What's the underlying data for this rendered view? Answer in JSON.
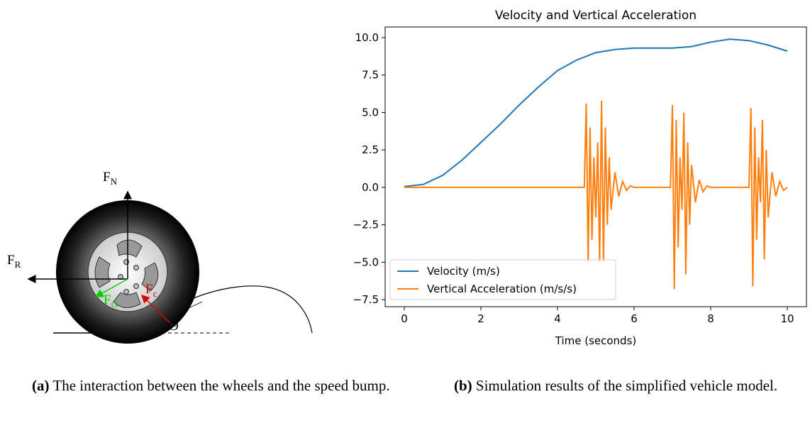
{
  "figure_a": {
    "labels": {
      "normal": {
        "symbol": "F",
        "subscript": "N"
      },
      "rolling": {
        "symbol": "F",
        "subscript": "R"
      },
      "gravity": {
        "symbol": "F",
        "subscript": "G"
      },
      "contact": {
        "symbol": "F",
        "subscript": "c"
      },
      "angle": "Θ"
    },
    "caption": {
      "label": "(a)",
      "text": "The interaction between the wheels and the speed bump."
    }
  },
  "figure_b_caption": {
    "label": "(b)",
    "text": "Simulation results of the simplified vehicle model."
  },
  "chart_data": {
    "type": "line",
    "title": "Velocity and Vertical Acceleration",
    "x_label": "Time (seconds)",
    "xlim": [
      -0.5,
      10.5
    ],
    "ylim": [
      -7.97,
      10.71
    ],
    "xticks": [
      0,
      2,
      4,
      6,
      8,
      10
    ],
    "yticks": [
      {
        "value": -7.5,
        "label": "−7.5"
      },
      {
        "value": -5,
        "label": "−5.0"
      },
      {
        "value": -2.5,
        "label": "−2.5"
      },
      {
        "value": 0,
        "label": "0.0"
      },
      {
        "value": 2.5,
        "label": "2.5"
      },
      {
        "value": 5,
        "label": "5.0"
      },
      {
        "value": 7.5,
        "label": "7.5"
      },
      {
        "value": 10,
        "label": "10.0"
      }
    ],
    "legend": "lower left",
    "series": [
      {
        "name": "Velocity (m/s)",
        "color": "#1f77b4",
        "x": [
          0,
          0.5,
          1,
          1.5,
          2,
          2.5,
          3,
          3.5,
          4,
          4.5,
          5,
          5.5,
          6,
          6.5,
          7,
          7.5,
          8,
          8.5,
          9,
          9.5,
          10
        ],
        "values": [
          0.05,
          0.2,
          0.8,
          1.8,
          3.0,
          4.2,
          5.5,
          6.7,
          7.8,
          8.5,
          9.0,
          9.2,
          9.3,
          9.3,
          9.3,
          9.4,
          9.7,
          9.9,
          9.8,
          9.5,
          9.1
        ]
      },
      {
        "name": "Vertical Acceleration (m/s/s)",
        "color": "#ff7f0e",
        "x": [
          0,
          4.7,
          4.75,
          4.8,
          4.85,
          4.9,
          4.95,
          5.0,
          5.05,
          5.1,
          5.15,
          5.2,
          5.25,
          5.3,
          5.35,
          5.4,
          5.5,
          5.6,
          5.7,
          5.8,
          5.9,
          6.0,
          6.95,
          7.0,
          7.05,
          7.1,
          7.15,
          7.2,
          7.25,
          7.3,
          7.35,
          7.4,
          7.45,
          7.5,
          7.6,
          7.7,
          7.8,
          7.9,
          8.0,
          9.0,
          9.05,
          9.1,
          9.15,
          9.2,
          9.25,
          9.3,
          9.35,
          9.4,
          9.45,
          9.5,
          9.6,
          9.7,
          9.8,
          9.9,
          10
        ],
        "values": [
          0,
          0,
          5.6,
          -5,
          4,
          -3.5,
          2,
          -2,
          3,
          -5,
          5.8,
          -5,
          4,
          -2.5,
          2,
          -1.5,
          1,
          -0.6,
          0.4,
          -0.2,
          0.1,
          0,
          0,
          5.5,
          -6.8,
          4.5,
          -4,
          2,
          -1.5,
          5,
          -5.8,
          3,
          -2.5,
          1.5,
          -1,
          0.5,
          -0.3,
          0.1,
          0,
          0,
          5.3,
          -6.6,
          4,
          -3.5,
          2,
          -1,
          4.5,
          -4.8,
          2.5,
          -2,
          1,
          -0.6,
          0.4,
          -0.2,
          0
        ]
      }
    ]
  }
}
